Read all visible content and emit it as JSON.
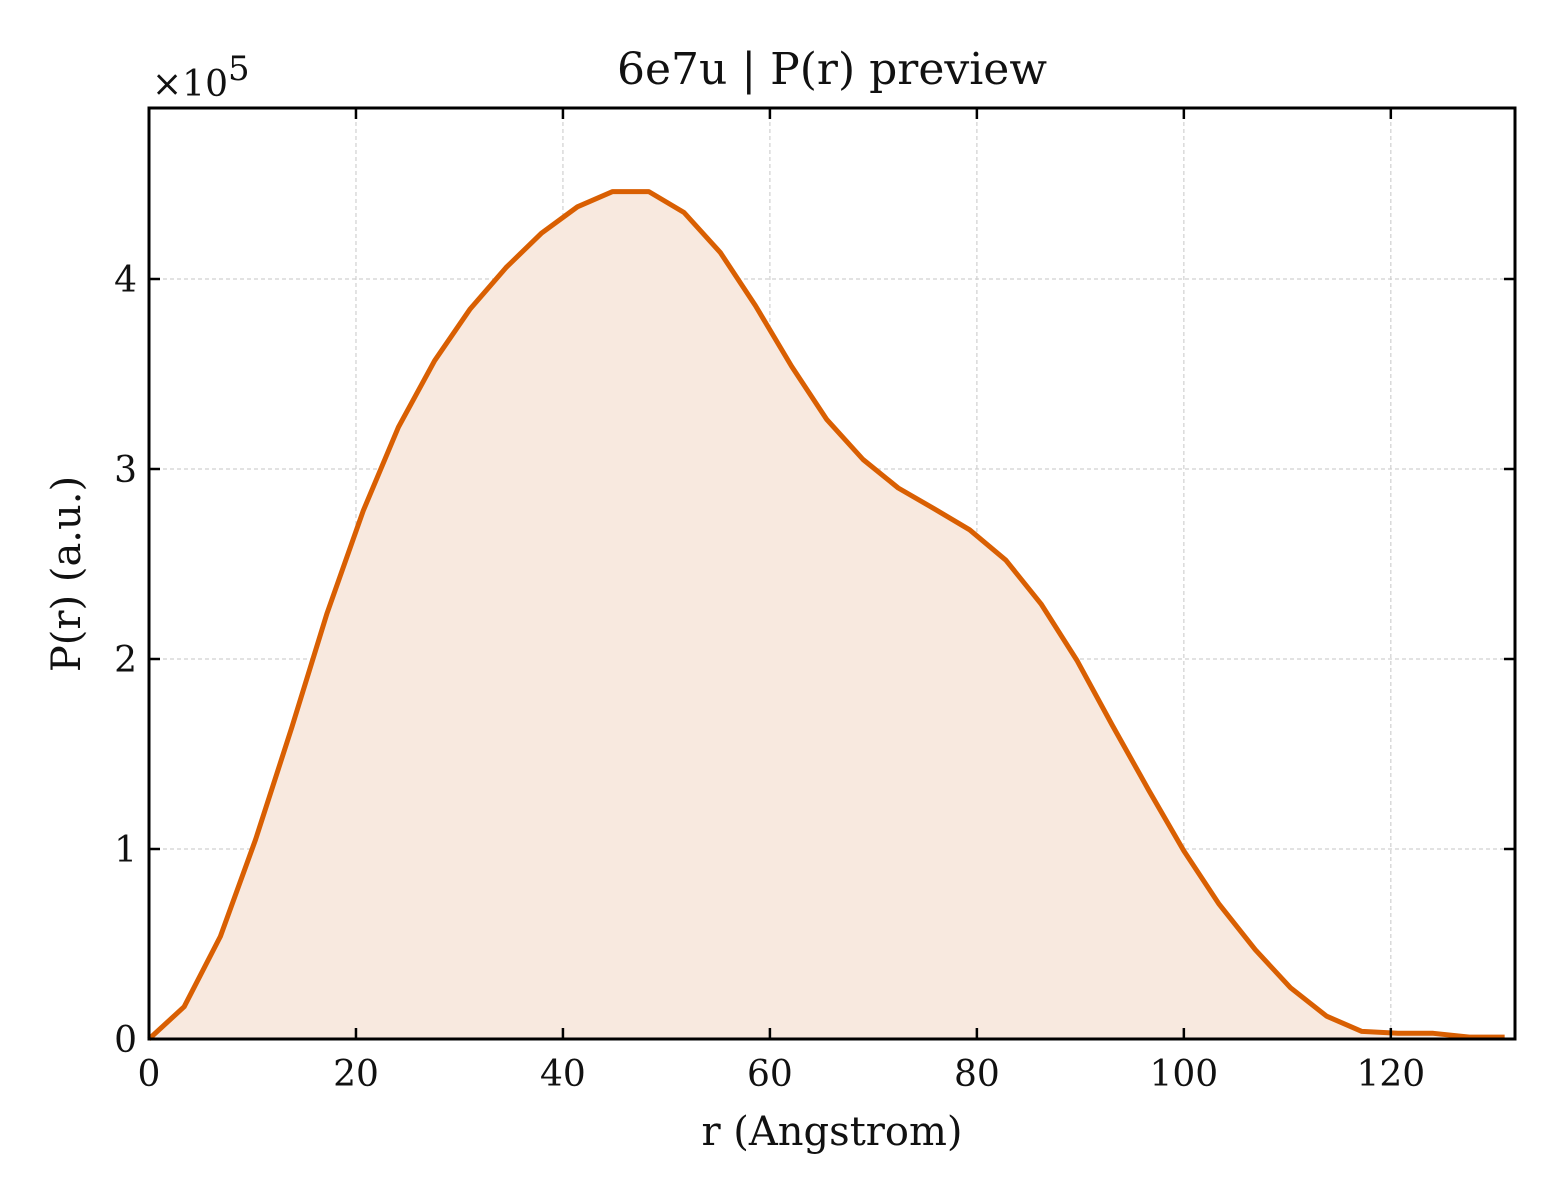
{
  "chart_data": {
    "type": "area",
    "title": "6e7u | P(r) preview",
    "xlabel": "r (Angstrom)",
    "ylabel": "P(r) (a.u.)",
    "y_multiplier_base": "×10",
    "y_multiplier_exp": "5",
    "xlim": [
      0,
      132
    ],
    "ylim": [
      0,
      4.9
    ],
    "xticks": [
      0,
      20,
      40,
      60,
      80,
      100,
      120
    ],
    "yticks": [
      0,
      1,
      2,
      3,
      4
    ],
    "grid": true,
    "line_color": "#d95f02",
    "fill_color": "#f8e9df",
    "x": [
      0,
      3.4,
      6.9,
      10.3,
      13.8,
      17.2,
      20.7,
      24.1,
      27.6,
      31.0,
      34.5,
      37.9,
      41.4,
      44.8,
      48.3,
      51.7,
      55.2,
      58.6,
      62.1,
      65.5,
      69.0,
      72.4,
      75.9,
      79.3,
      82.8,
      86.2,
      89.7,
      93.1,
      96.6,
      100.0,
      103.4,
      106.9,
      110.3,
      113.8,
      117.2,
      120.7,
      124.1,
      127.6,
      131.0
    ],
    "y": [
      0.0,
      0.17,
      0.54,
      1.05,
      1.64,
      2.24,
      2.78,
      3.22,
      3.57,
      3.84,
      4.06,
      4.24,
      4.38,
      4.46,
      4.46,
      4.35,
      4.14,
      3.86,
      3.54,
      3.26,
      3.05,
      2.9,
      2.79,
      2.68,
      2.52,
      2.29,
      1.99,
      1.65,
      1.31,
      0.99,
      0.71,
      0.47,
      0.27,
      0.12,
      0.04,
      0.03,
      0.03,
      0.01,
      0.01
    ]
  }
}
